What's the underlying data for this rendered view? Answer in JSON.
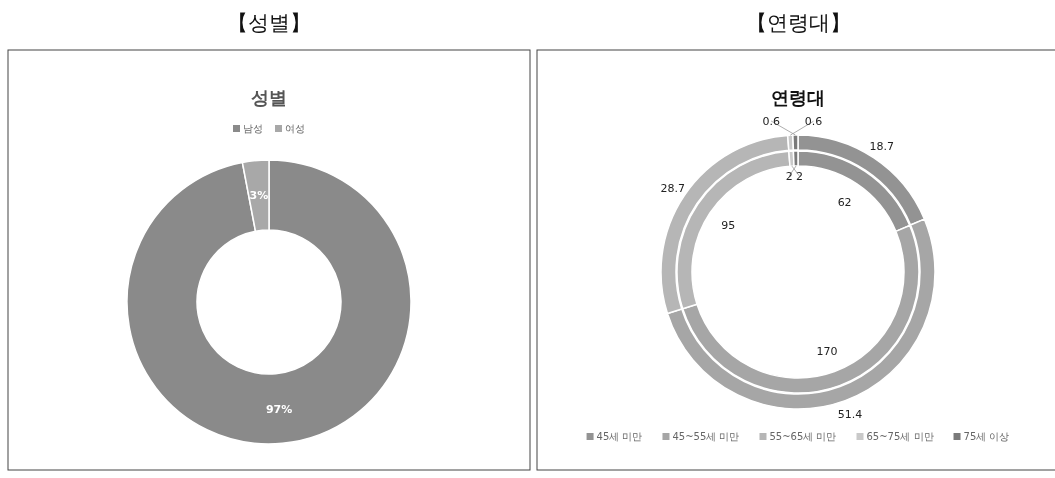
{
  "chart_data": [
    {
      "type": "donut",
      "title": "【성별】",
      "subtitle": "성별",
      "categories": [
        "남성",
        "여성"
      ],
      "values": [
        97,
        3
      ],
      "colors": [
        "#8a8a8a",
        "#a8a8a8"
      ],
      "value_labels": [
        "97%",
        "3%"
      ],
      "legend": "top"
    },
    {
      "type": "donut",
      "title": "【연령대】",
      "subtitle": "연령대",
      "categories": [
        "45세 미만",
        "45~55세 미만",
        "55~65세 미만",
        "65~75세 미만",
        "75세 이상"
      ],
      "colors": [
        "#939393",
        "#a6a6a6",
        "#b6b6b6",
        "#c9c9c9",
        "#7a7a7a"
      ],
      "series": [
        {
          "values": [
            62,
            170,
            95,
            2,
            2
          ]
        },
        {
          "values": [
            18.7,
            51.4,
            28.7,
            0.6,
            0.6
          ]
        }
      ],
      "data_labels": true,
      "legend": "bottom"
    }
  ]
}
